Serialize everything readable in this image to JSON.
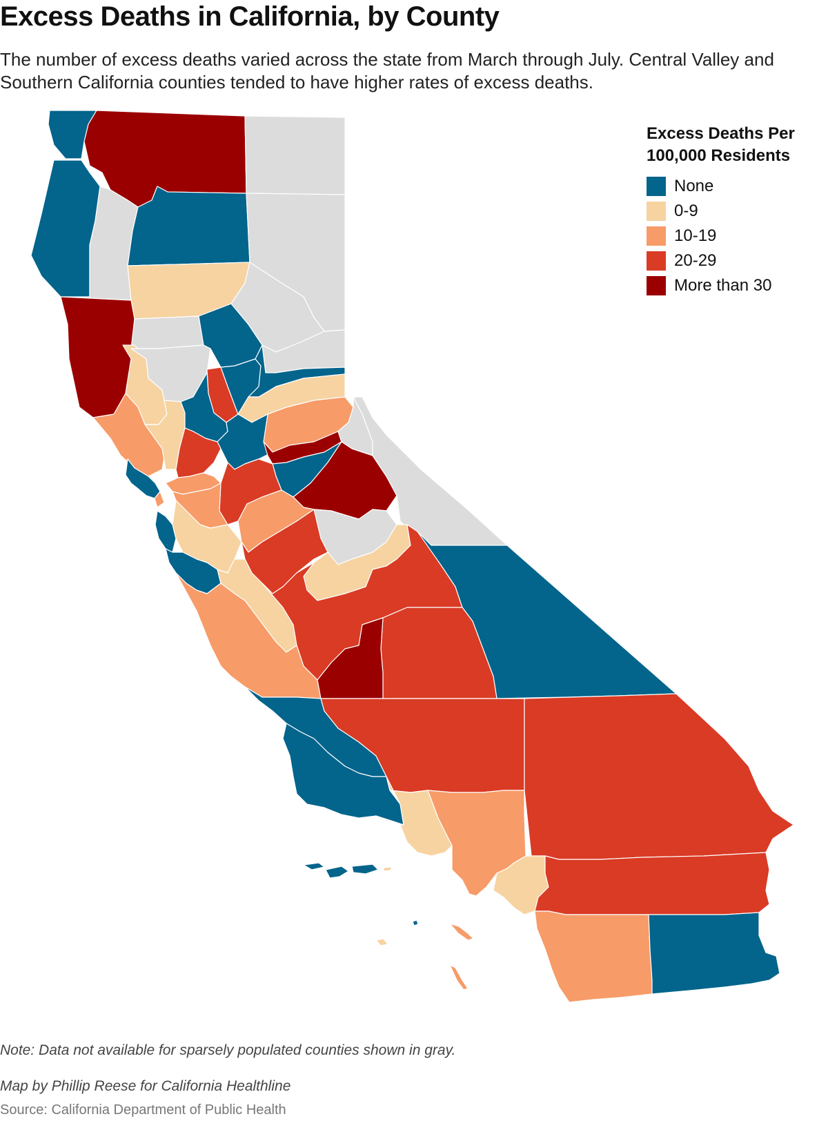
{
  "title": "Excess Deaths in California, by County",
  "subtitle": "The number of excess deaths varied across the state from March through July. Central Valley and Southern California counties tended to have higher rates of excess deaths.",
  "legend": {
    "title": "Excess Deaths Per 100,000 Residents",
    "items": [
      {
        "label": "None",
        "color": "#03648c"
      },
      {
        "label": "0-9",
        "color": "#f6d3a1"
      },
      {
        "label": "10-19",
        "color": "#f79b68"
      },
      {
        "label": "20-29",
        "color": "#d93b25"
      },
      {
        "label": "More than 30",
        "color": "#9b0000"
      }
    ]
  },
  "no_data_color": "#dcdcdc",
  "note": "Note: Data not available for sparsely populated counties shown in gray.",
  "credit": "Map by Phillip Reese for California Healthline",
  "source": "Source: California Department of Public Health",
  "counties": [
    {
      "shape": "del-norte",
      "category": "None"
    },
    {
      "shape": "siskiyou",
      "category": "More than 30"
    },
    {
      "shape": "modoc",
      "category": "No data"
    },
    {
      "shape": "humboldt",
      "category": "None"
    },
    {
      "shape": "trinity",
      "category": "No data"
    },
    {
      "shape": "shasta",
      "category": "None"
    },
    {
      "shape": "lassen",
      "category": "No data"
    },
    {
      "shape": "tehama",
      "category": "0-9"
    },
    {
      "shape": "plumas",
      "category": "No data"
    },
    {
      "shape": "mendocino",
      "category": "More than 30"
    },
    {
      "shape": "glenn",
      "category": "No data"
    },
    {
      "shape": "butte",
      "category": "None"
    },
    {
      "shape": "sierra",
      "category": "No data"
    },
    {
      "shape": "lake",
      "category": "0-9"
    },
    {
      "shape": "colusa",
      "category": "No data"
    },
    {
      "shape": "sutter",
      "category": "20-29"
    },
    {
      "shape": "yuba",
      "category": "None"
    },
    {
      "shape": "nevada",
      "category": "None"
    },
    {
      "shape": "placer",
      "category": "0-9"
    },
    {
      "shape": "el-dorado",
      "category": "10-19"
    },
    {
      "shape": "sonoma",
      "category": "10-19"
    },
    {
      "shape": "napa",
      "category": "0-9"
    },
    {
      "shape": "yolo",
      "category": "None"
    },
    {
      "shape": "sacramento",
      "category": "None"
    },
    {
      "shape": "amador",
      "category": "More than 30"
    },
    {
      "shape": "alpine",
      "category": "No data"
    },
    {
      "shape": "marin",
      "category": "None"
    },
    {
      "shape": "solano",
      "category": "20-29"
    },
    {
      "shape": "calaveras",
      "category": "None"
    },
    {
      "shape": "tuolumne",
      "category": "More than 30"
    },
    {
      "shape": "mono",
      "category": "No data"
    },
    {
      "shape": "san-francisco",
      "category": "10-19"
    },
    {
      "shape": "contra-costa",
      "category": "10-19"
    },
    {
      "shape": "san-joaquin",
      "category": "20-29"
    },
    {
      "shape": "alameda",
      "category": "10-19"
    },
    {
      "shape": "stanislaus",
      "category": "10-19"
    },
    {
      "shape": "mariposa",
      "category": "No data"
    },
    {
      "shape": "san-mateo",
      "category": "None"
    },
    {
      "shape": "santa-clara",
      "category": "0-9"
    },
    {
      "shape": "merced",
      "category": "20-29"
    },
    {
      "shape": "madera",
      "category": "0-9"
    },
    {
      "shape": "santa-cruz",
      "category": "None"
    },
    {
      "shape": "san-benito",
      "category": "0-9"
    },
    {
      "shape": "fresno",
      "category": "20-29"
    },
    {
      "shape": "inyo",
      "category": "None"
    },
    {
      "shape": "monterey",
      "category": "10-19"
    },
    {
      "shape": "tulare",
      "category": "20-29"
    },
    {
      "shape": "kings",
      "category": "More than 30"
    },
    {
      "shape": "san-luis-obispo",
      "category": "None"
    },
    {
      "shape": "kern",
      "category": "20-29"
    },
    {
      "shape": "san-bernardino",
      "category": "20-29"
    },
    {
      "shape": "santa-barbara",
      "category": "None"
    },
    {
      "shape": "ventura",
      "category": "0-9"
    },
    {
      "shape": "los-angeles",
      "category": "10-19"
    },
    {
      "shape": "orange",
      "category": "0-9"
    },
    {
      "shape": "riverside",
      "category": "20-29"
    },
    {
      "shape": "san-diego",
      "category": "10-19"
    },
    {
      "shape": "imperial",
      "category": "None"
    },
    {
      "shape": "channel-islands-sb",
      "category": "None"
    },
    {
      "shape": "anacapa",
      "category": "0-9"
    },
    {
      "shape": "santa-barbara-island",
      "category": "None"
    },
    {
      "shape": "san-nicolas",
      "category": "0-9"
    },
    {
      "shape": "santa-catalina",
      "category": "10-19"
    },
    {
      "shape": "san-clemente",
      "category": "10-19"
    }
  ]
}
